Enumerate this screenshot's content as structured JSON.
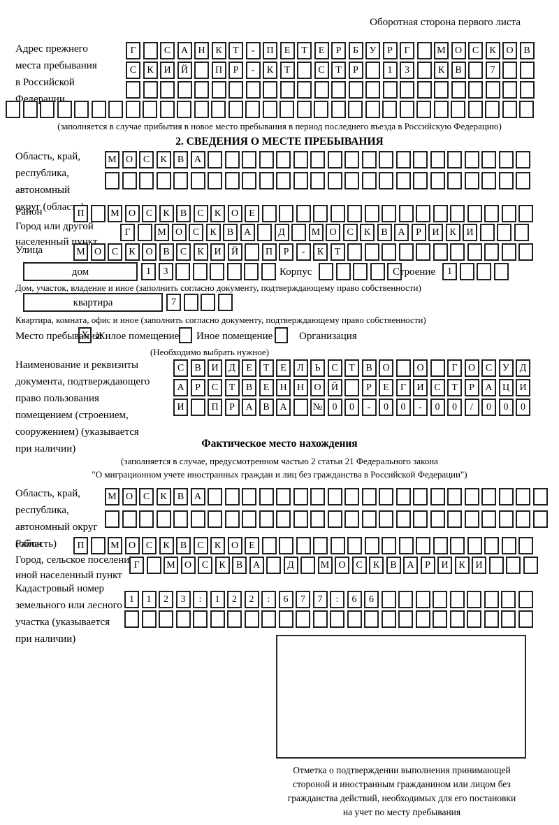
{
  "page": {
    "header_note": "Оборотная сторона первого листа"
  },
  "prev_address": {
    "label_lines": [
      "Адрес прежнего",
      "места пребывания",
      "в Российской",
      "Федерации"
    ],
    "rows": [
      {
        "count": 24,
        "chars": [
          "Г",
          "",
          "С",
          "А",
          "Н",
          "К",
          "Т",
          "-",
          "П",
          "Е",
          "Т",
          "Е",
          "Р",
          "Б",
          "У",
          "Р",
          "Г",
          "",
          "М",
          "О",
          "С",
          "К",
          "О",
          "В"
        ]
      },
      {
        "count": 24,
        "chars": [
          "С",
          "К",
          "И",
          "Й",
          "",
          "П",
          "Р",
          "-",
          "К",
          "Т",
          "",
          "С",
          "Т",
          "Р",
          "",
          "1",
          "3",
          "",
          "К",
          "В",
          "",
          "7"
        ]
      },
      {
        "count": 24,
        "chars": []
      },
      {
        "count": 31,
        "chars": []
      }
    ],
    "note": "(заполняется в случае прибытия в новое место пребывания в период последнего въезда в Российскую Федерацию)"
  },
  "section2": {
    "title": "2. СВЕДЕНИЯ О МЕСТЕ ПРЕБЫВАНИЯ",
    "region": {
      "label_lines": [
        "Область, край,",
        "республика,",
        "автономный",
        "округ (область)"
      ],
      "rows": [
        {
          "count": 25,
          "chars": [
            "М",
            "О",
            "С",
            "К",
            "В",
            "А"
          ]
        },
        {
          "count": 25,
          "chars": []
        }
      ]
    },
    "district": {
      "label": "Район",
      "row": {
        "count": 27,
        "chars": [
          "П",
          "",
          "М",
          "О",
          "С",
          "К",
          "В",
          "С",
          "К",
          "О",
          "Е"
        ]
      }
    },
    "city": {
      "label_lines": [
        "Город или другой",
        "населенный пункт"
      ],
      "row": {
        "count": 24,
        "chars": [
          "Г",
          "",
          "М",
          "О",
          "С",
          "К",
          "В",
          "А",
          "",
          "Д",
          "",
          "М",
          "О",
          "С",
          "К",
          "В",
          "А",
          "Р",
          "И",
          "К",
          "И"
        ]
      }
    },
    "street": {
      "label": "Улица",
      "row": {
        "count": 27,
        "chars": [
          "М",
          "О",
          "С",
          "К",
          "О",
          "В",
          "С",
          "К",
          "И",
          "Й",
          "",
          "П",
          "Р",
          "-",
          "К",
          "Т"
        ]
      }
    },
    "house": {
      "box_label": "дом",
      "row": {
        "count": 8,
        "chars": [
          "1",
          "3"
        ]
      },
      "korpus_label": "Корпус",
      "korpus_row": {
        "count": 5,
        "chars": []
      },
      "stroenie_label": "Строение",
      "stroenie_row": {
        "count": 4,
        "chars": [
          "1"
        ]
      },
      "note": "Дом, участок, владение и иное (заполнить согласно документу, подтверждающему право собственности)"
    },
    "apartment": {
      "box_label": "квартира",
      "row": {
        "count": 4,
        "chars": [
          "7"
        ]
      },
      "note": "Квартира, комната, офис и иное (заполнить согласно документу, подтверждающему право собственности)"
    },
    "stay_type": {
      "label": "Место пребывания:",
      "options": [
        {
          "mark": "X",
          "label": "Жилое помещение"
        },
        {
          "mark": "",
          "label": "Иное помещение"
        },
        {
          "mark": "",
          "label": "Организация"
        }
      ],
      "note": "(Необходимо выбрать нужное)"
    },
    "doc": {
      "label_lines": [
        "Наименование и реквизиты",
        "документа, подтверждающего",
        "право пользования",
        "помещением (строением,",
        "сооружением) (указывается",
        "при наличии)"
      ],
      "rows": [
        {
          "count": 21,
          "chars": [
            "С",
            "В",
            "И",
            "Д",
            "Е",
            "Т",
            "Е",
            "Л",
            "Ь",
            "С",
            "Т",
            "В",
            "О",
            "",
            "О",
            "",
            "Г",
            "О",
            "С",
            "У",
            "Д"
          ]
        },
        {
          "count": 21,
          "chars": [
            "А",
            "Р",
            "С",
            "Т",
            "В",
            "Е",
            "Н",
            "Н",
            "О",
            "Й",
            "",
            "Р",
            "Е",
            "Г",
            "И",
            "С",
            "Т",
            "Р",
            "А",
            "Ц",
            "И"
          ]
        },
        {
          "count": 21,
          "chars": [
            "И",
            "",
            "П",
            "Р",
            "А",
            "В",
            "А",
            "",
            "№",
            "0",
            "0",
            "-",
            "0",
            "0",
            "-",
            "0",
            "0",
            "/",
            "0",
            "0",
            "0"
          ]
        }
      ]
    }
  },
  "actual_location": {
    "title": "Фактическое место нахождения",
    "note_lines": [
      "(заполняется в случае, предусмотренном частью 2 статьи 21 Федерального закона",
      "\"О миграционном учете иностранных граждан и лиц без гражданства в Российской Федерации\")"
    ],
    "region": {
      "label_lines": [
        "Область, край,",
        "республика,",
        "автономный округ",
        "(область)"
      ],
      "rows": [
        {
          "count": 26,
          "chars": [
            "М",
            "О",
            "С",
            "К",
            "В",
            "А"
          ]
        },
        {
          "count": 26,
          "chars": []
        }
      ]
    },
    "district": {
      "label": "Район",
      "row": {
        "count": 27,
        "chars": [
          "П",
          "",
          "М",
          "О",
          "С",
          "К",
          "В",
          "С",
          "К",
          "О",
          "Е"
        ]
      }
    },
    "city": {
      "label_lines": [
        "Город, сельское поселение,",
        "иной населенный пункт"
      ],
      "row": {
        "count": 24,
        "chars": [
          "Г",
          "",
          "М",
          "О",
          "С",
          "К",
          "В",
          "А",
          "",
          "Д",
          "",
          "М",
          "О",
          "С",
          "К",
          "В",
          "А",
          "Р",
          "И",
          "К",
          "И"
        ]
      }
    },
    "cadastre": {
      "label_lines": [
        "Кадастровый номер",
        "земельного или лесного",
        "участка (указывается",
        "при наличии)"
      ],
      "rows": [
        {
          "count": 24,
          "chars": [
            "1",
            "1",
            "2",
            "3",
            ":",
            "1",
            "2",
            "2",
            ":",
            "6",
            "7",
            "7",
            ":",
            "6",
            "6"
          ]
        },
        {
          "count": 24,
          "chars": []
        }
      ]
    },
    "stamp_caption_lines": [
      "Отметка о подтверждении выполнения принимающей",
      "стороной и иностранным гражданином или лицом без",
      "гражданства действий, необходимых для его постановки",
      "на учет по месту пребывания"
    ]
  }
}
